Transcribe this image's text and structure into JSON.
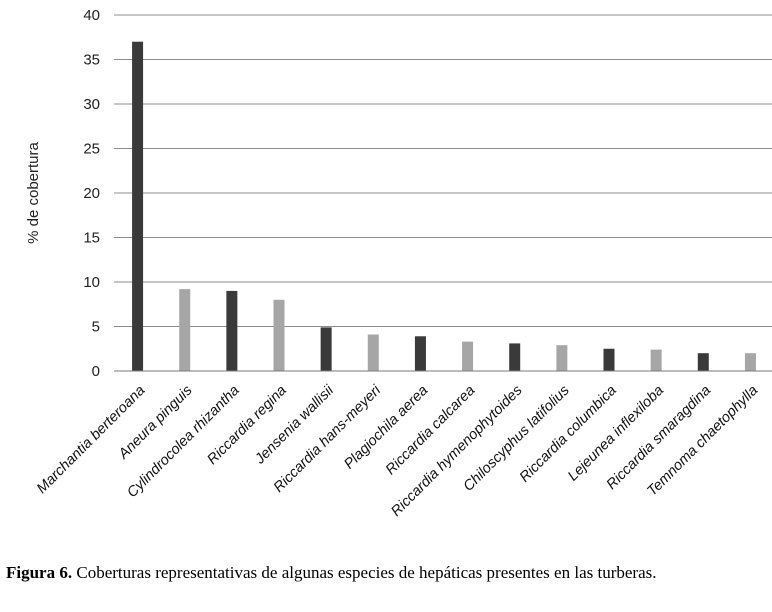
{
  "chart_data": {
    "type": "bar",
    "ylabel": "% de cobertura",
    "ylim": [
      0,
      40
    ],
    "yticks": [
      0,
      5,
      10,
      15,
      20,
      25,
      30,
      35,
      40
    ],
    "grid": true,
    "categories": [
      "Marchantia berteroana",
      "Aneura pinguis",
      "Cylindrocolea rhizantha",
      "Riccardia regina",
      "Jensenia wallisii",
      "Riccardia hans-meyeri",
      "Plagiochila aerea",
      "Riccardia calcarea",
      "Riccardia hymenophytoides",
      "Chiloscyphus latifolius",
      "Riccardia columbica",
      "Lejeunea inflexiloba",
      "Riccardia smaragdina",
      "Temnoma chaetophylla"
    ],
    "values": [
      37,
      9.2,
      9,
      8,
      4.9,
      4.1,
      3.9,
      3.3,
      3.1,
      2.9,
      2.5,
      2.4,
      2.0,
      2.0
    ],
    "colors": [
      "#3a3a3a",
      "#a6a6a6"
    ]
  },
  "caption": {
    "label": "Figura 6.",
    "text": " Coberturas representativas de algunas especies de hepáticas presentes en las turberas."
  }
}
